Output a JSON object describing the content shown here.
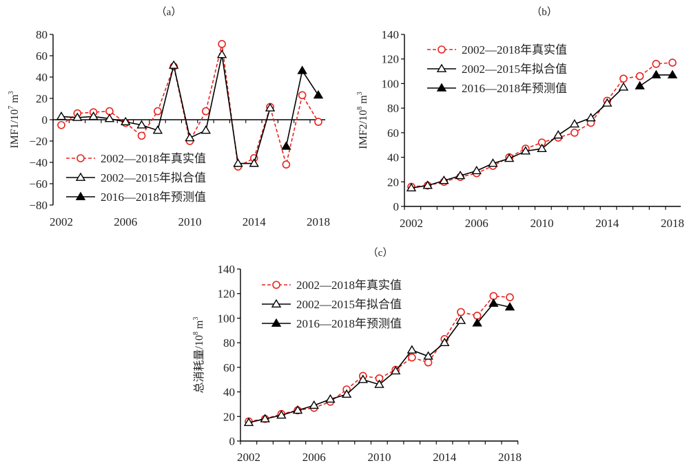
{
  "chart_data": [
    {
      "id": "a",
      "type": "line",
      "panel_label": "（a）",
      "title": "",
      "xlabel": "",
      "ylabel": "IMF1/10",
      "ylabel_exp": "7",
      "ylabel_unit": " m",
      "ylabel_unit_exp": "3",
      "xlim": [
        2002,
        2018
      ],
      "ylim": [
        -80,
        80
      ],
      "yticks": [
        80,
        60,
        40,
        20,
        0,
        -20,
        -40,
        -60,
        -80
      ],
      "ytick_labels": [
        "80",
        "60",
        "40",
        "20",
        "0",
        "−20",
        "−40",
        "−60",
        "−80"
      ],
      "xticks": [
        2002,
        2006,
        2010,
        2014,
        2018
      ],
      "xtick_labels": [
        "2002",
        "2006",
        "2010",
        "2014",
        "2018"
      ],
      "zero_line": true,
      "legend_position": "bottom-left",
      "series": [
        {
          "name": "2002—2018年真实值",
          "style": "dashed-red-circle",
          "x": [
            2002,
            2003,
            2004,
            2005,
            2006,
            2007,
            2008,
            2009,
            2010,
            2011,
            2012,
            2013,
            2014,
            2015,
            2016,
            2017,
            2018
          ],
          "values": [
            -5,
            6,
            7,
            8,
            -3,
            -15,
            8,
            50,
            -20,
            8,
            71,
            -44,
            -36,
            12,
            -42,
            23,
            -2
          ]
        },
        {
          "name": "2002—2015年拟合值",
          "style": "solid-black-open-triangle",
          "x": [
            2002,
            2003,
            2004,
            2005,
            2006,
            2007,
            2008,
            2009,
            2010,
            2011,
            2012,
            2013,
            2014,
            2015
          ],
          "values": [
            3,
            2,
            3,
            1,
            -2,
            -5,
            -10,
            51,
            -17,
            -10,
            61,
            -41,
            -41,
            11
          ]
        },
        {
          "name": "2016—2018年预测值",
          "style": "solid-black-filled-triangle",
          "x": [
            2016,
            2017,
            2018
          ],
          "values": [
            -25,
            46,
            23
          ]
        }
      ]
    },
    {
      "id": "b",
      "type": "line",
      "panel_label": "（b）",
      "title": "",
      "xlabel": "",
      "ylabel": "IMF2/10",
      "ylabel_exp": "8",
      "ylabel_unit": " m",
      "ylabel_unit_exp": "3",
      "xlim": [
        2002,
        2018
      ],
      "ylim": [
        0,
        140
      ],
      "yticks": [
        140,
        120,
        100,
        80,
        60,
        40,
        20,
        0
      ],
      "ytick_labels": [
        "140",
        "120",
        "100",
        "80",
        "60",
        "40",
        "20",
        "0"
      ],
      "xticks": [
        2002,
        2006,
        2010,
        2014,
        2018
      ],
      "xtick_labels": [
        "2002",
        "2006",
        "2010",
        "2014",
        "2018"
      ],
      "zero_line": false,
      "legend_position": "top-left",
      "series": [
        {
          "name": "2002—2018年真实值",
          "style": "dashed-red-circle",
          "x": [
            2002,
            2003,
            2004,
            2005,
            2006,
            2007,
            2008,
            2009,
            2010,
            2011,
            2012,
            2013,
            2014,
            2015,
            2016,
            2017,
            2018
          ],
          "values": [
            16,
            17,
            20,
            24,
            27,
            33,
            40,
            47,
            52,
            56,
            60,
            68,
            86,
            104,
            106,
            116,
            117
          ]
        },
        {
          "name": "2002—2015年拟合值",
          "style": "solid-black-open-triangle",
          "x": [
            2002,
            2003,
            2004,
            2005,
            2006,
            2007,
            2008,
            2009,
            2010,
            2011,
            2012,
            2013,
            2014,
            2015
          ],
          "values": [
            15,
            17,
            21,
            25,
            29,
            35,
            39,
            45,
            47,
            58,
            67,
            72,
            84,
            97
          ]
        },
        {
          "name": "2016—2018年预测值",
          "style": "solid-black-filled-triangle",
          "x": [
            2016,
            2017,
            2018
          ],
          "values": [
            98,
            107,
            107
          ]
        }
      ]
    },
    {
      "id": "c",
      "type": "line",
      "panel_label": "（c）",
      "title": "",
      "xlabel": "",
      "ylabel": "总消耗量/10",
      "ylabel_exp": "8",
      "ylabel_unit": " m",
      "ylabel_unit_exp": "3",
      "xlim": [
        2002,
        2018
      ],
      "ylim": [
        0,
        140
      ],
      "yticks": [
        140,
        120,
        100,
        80,
        60,
        40,
        20,
        0
      ],
      "ytick_labels": [
        "140",
        "120",
        "100",
        "80",
        "60",
        "40",
        "20",
        "0"
      ],
      "xticks": [
        2002,
        2006,
        2010,
        2014,
        2018
      ],
      "xtick_labels": [
        "2002",
        "2006",
        "2010",
        "2014",
        "2018"
      ],
      "zero_line": false,
      "legend_position": "top-left",
      "series": [
        {
          "name": "2002—2018年真实值",
          "style": "dashed-red-circle",
          "x": [
            2002,
            2003,
            2004,
            2005,
            2006,
            2007,
            2008,
            2009,
            2010,
            2011,
            2012,
            2013,
            2014,
            2015,
            2016,
            2017,
            2018
          ],
          "values": [
            16,
            18,
            22,
            25,
            27,
            32,
            42,
            53,
            51,
            58,
            68,
            64,
            83,
            105,
            102,
            118,
            117
          ]
        },
        {
          "name": "2002—2015年拟合值",
          "style": "solid-black-open-triangle",
          "x": [
            2002,
            2003,
            2004,
            2005,
            2006,
            2007,
            2008,
            2009,
            2010,
            2011,
            2012,
            2013,
            2014,
            2015
          ],
          "values": [
            15,
            18,
            21,
            25,
            29,
            34,
            38,
            50,
            46,
            57,
            74,
            69,
            80,
            98
          ]
        },
        {
          "name": "2016—2018年预测值",
          "style": "solid-black-filled-triangle",
          "x": [
            2016,
            2017,
            2018
          ],
          "values": [
            96,
            112,
            109
          ]
        }
      ]
    }
  ],
  "colors": {
    "real": "#e8231f",
    "fitted": "#000000",
    "predicted": "#000000",
    "text": "#222222"
  }
}
